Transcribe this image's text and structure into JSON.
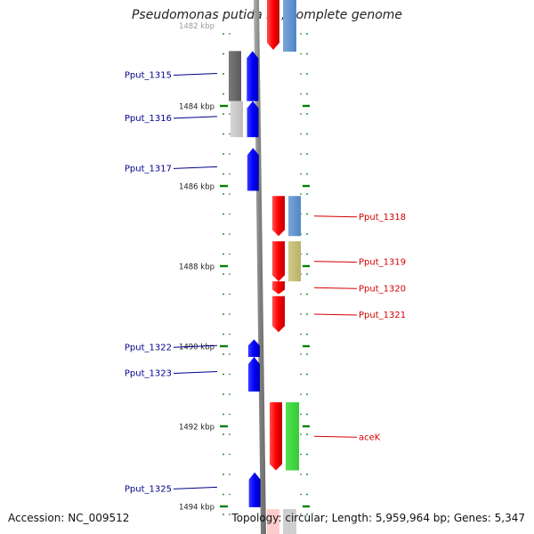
{
  "title": "Pseudomonas putida F1, complete genome",
  "accession": "Accession: NC_009512",
  "topology": "Topology: circular; Length: 5,959,964 bp; Genes: 5,347",
  "colors": {
    "forward_gene": "#0000ff",
    "reverse_gene": "#ff0000",
    "label_forward": "#00008b",
    "label_reverse": "#d40000",
    "tick": "#008000",
    "backbone": "#808080",
    "cds_gray_dark": "#5a5a5a",
    "cds_gray_light": "#bdbdbd",
    "cds_steelblue": "#4f86c6",
    "cds_khaki": "#b8b26a",
    "cds_green": "#33cc33"
  },
  "ruler": {
    "unit": "kbp",
    "top_label": "1482 kbp",
    "ticks": [
      {
        "kbp": 1484,
        "label": "1484 kbp"
      },
      {
        "kbp": 1486,
        "label": "1486 kbp"
      },
      {
        "kbp": 1488,
        "label": "1488 kbp"
      },
      {
        "kbp": 1490,
        "label": "1490 kbp"
      },
      {
        "kbp": 1492,
        "label": "1492 kbp"
      },
      {
        "kbp": 1494,
        "label": "1494 kbp"
      }
    ]
  },
  "genes_forward": [
    {
      "name": "Pput_1315",
      "start": 1482.63,
      "end": 1483.88
    },
    {
      "name": "Pput_1316",
      "start": 1483.88,
      "end": 1484.78
    },
    {
      "name": "Pput_1317",
      "start": 1485.05,
      "end": 1486.12
    },
    {
      "name": "Pput_1322",
      "start": 1489.83,
      "end": 1490.27
    },
    {
      "name": "Pput_1323",
      "start": 1490.27,
      "end": 1491.13
    },
    {
      "name": "Pput_1325",
      "start": 1493.15,
      "end": 1494.02
    }
  ],
  "genes_reverse": [
    {
      "name": "Pput_1318",
      "start": 1486.25,
      "end": 1487.25
    },
    {
      "name": "Pput_1319",
      "start": 1487.38,
      "end": 1488.38
    },
    {
      "name": "Pput_1320",
      "start": 1488.38,
      "end": 1488.7
    },
    {
      "name": "Pput_1321",
      "start": 1488.75,
      "end": 1489.65
    },
    {
      "name": "aceK",
      "start": 1491.4,
      "end": 1493.1
    }
  ]
}
